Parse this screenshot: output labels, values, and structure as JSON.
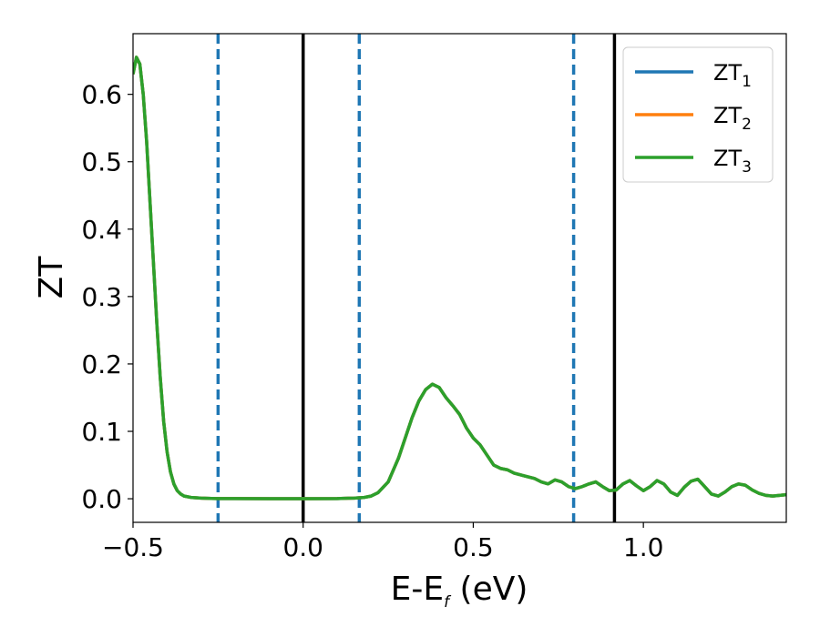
{
  "chart_data": {
    "type": "line",
    "title": "",
    "xlabel_main": "E-E",
    "xlabel_sub": "f",
    "xlabel_unit": " (eV)",
    "ylabel": "ZT",
    "xlim": [
      -0.5,
      1.42
    ],
    "ylim": [
      -0.035,
      0.69
    ],
    "xticks": [
      {
        "value": -0.5,
        "label": "−0.5"
      },
      {
        "value": 0.0,
        "label": "0.0"
      },
      {
        "value": 0.5,
        "label": "0.5"
      },
      {
        "value": 1.0,
        "label": "1.0"
      }
    ],
    "yticks": [
      {
        "value": 0.0,
        "label": "0.0"
      },
      {
        "value": 0.1,
        "label": "0.1"
      },
      {
        "value": 0.2,
        "label": "0.2"
      },
      {
        "value": 0.3,
        "label": "0.3"
      },
      {
        "value": 0.4,
        "label": "0.4"
      },
      {
        "value": 0.5,
        "label": "0.5"
      },
      {
        "value": 0.6,
        "label": "0.6"
      }
    ],
    "grid": false,
    "legend_position": "top-right",
    "vlines_solid": [
      0.0,
      0.915
    ],
    "vlines_dashed": [
      -0.25,
      0.165,
      0.795
    ],
    "vline_solid_color": "#000000",
    "vline_dashed_color": "#1f77b4",
    "x": [
      -0.5,
      -0.49,
      -0.48,
      -0.47,
      -0.46,
      -0.45,
      -0.44,
      -0.43,
      -0.42,
      -0.41,
      -0.4,
      -0.39,
      -0.38,
      -0.37,
      -0.36,
      -0.35,
      -0.33,
      -0.3,
      -0.27,
      -0.25,
      -0.2,
      -0.1,
      0.0,
      0.1,
      0.15,
      0.18,
      0.2,
      0.22,
      0.25,
      0.28,
      0.3,
      0.32,
      0.34,
      0.36,
      0.38,
      0.4,
      0.42,
      0.44,
      0.46,
      0.48,
      0.5,
      0.52,
      0.54,
      0.56,
      0.58,
      0.6,
      0.62,
      0.65,
      0.68,
      0.7,
      0.72,
      0.74,
      0.76,
      0.78,
      0.8,
      0.82,
      0.84,
      0.86,
      0.88,
      0.9,
      0.92,
      0.94,
      0.96,
      0.98,
      1.0,
      1.02,
      1.04,
      1.06,
      1.08,
      1.1,
      1.12,
      1.14,
      1.16,
      1.18,
      1.2,
      1.22,
      1.24,
      1.26,
      1.28,
      1.3,
      1.32,
      1.34,
      1.36,
      1.38,
      1.4,
      1.42
    ],
    "series": [
      {
        "name": "ZT",
        "sub": "1",
        "color": "#1f77b4",
        "values": [
          0.63,
          0.655,
          0.645,
          0.6,
          0.53,
          0.44,
          0.35,
          0.26,
          0.18,
          0.115,
          0.07,
          0.04,
          0.022,
          0.012,
          0.007,
          0.004,
          0.002,
          0.001,
          0.0005,
          0.0003,
          0.0002,
          0.0001,
          0.0001,
          0.0003,
          0.001,
          0.002,
          0.004,
          0.009,
          0.025,
          0.06,
          0.09,
          0.12,
          0.145,
          0.162,
          0.17,
          0.165,
          0.15,
          0.138,
          0.125,
          0.105,
          0.09,
          0.08,
          0.065,
          0.05,
          0.045,
          0.043,
          0.038,
          0.034,
          0.03,
          0.025,
          0.022,
          0.028,
          0.025,
          0.018,
          0.015,
          0.018,
          0.022,
          0.025,
          0.018,
          0.012,
          0.013,
          0.022,
          0.027,
          0.019,
          0.012,
          0.018,
          0.027,
          0.022,
          0.01,
          0.005,
          0.017,
          0.026,
          0.029,
          0.018,
          0.007,
          0.004,
          0.01,
          0.018,
          0.022,
          0.02,
          0.013,
          0.008,
          0.005,
          0.004,
          0.005,
          0.006
        ]
      },
      {
        "name": "ZT",
        "sub": "2",
        "color": "#ff7f0e",
        "values": [
          0.63,
          0.655,
          0.645,
          0.6,
          0.53,
          0.44,
          0.35,
          0.26,
          0.18,
          0.115,
          0.07,
          0.04,
          0.022,
          0.012,
          0.007,
          0.004,
          0.002,
          0.001,
          0.0005,
          0.0003,
          0.0002,
          0.0001,
          0.0001,
          0.0003,
          0.001,
          0.002,
          0.004,
          0.009,
          0.025,
          0.06,
          0.09,
          0.12,
          0.145,
          0.162,
          0.17,
          0.165,
          0.15,
          0.138,
          0.125,
          0.105,
          0.09,
          0.08,
          0.065,
          0.05,
          0.045,
          0.043,
          0.038,
          0.034,
          0.03,
          0.025,
          0.022,
          0.028,
          0.025,
          0.018,
          0.015,
          0.018,
          0.022,
          0.025,
          0.018,
          0.012,
          0.013,
          0.022,
          0.027,
          0.019,
          0.012,
          0.018,
          0.027,
          0.022,
          0.01,
          0.005,
          0.017,
          0.026,
          0.029,
          0.018,
          0.007,
          0.004,
          0.01,
          0.018,
          0.022,
          0.02,
          0.013,
          0.008,
          0.005,
          0.004,
          0.005,
          0.006
        ]
      },
      {
        "name": "ZT",
        "sub": "3",
        "color": "#2ca02c",
        "values": [
          0.63,
          0.655,
          0.645,
          0.6,
          0.53,
          0.44,
          0.35,
          0.26,
          0.18,
          0.115,
          0.07,
          0.04,
          0.022,
          0.012,
          0.007,
          0.004,
          0.002,
          0.001,
          0.0005,
          0.0003,
          0.0002,
          0.0001,
          0.0001,
          0.0003,
          0.001,
          0.002,
          0.004,
          0.009,
          0.025,
          0.06,
          0.09,
          0.12,
          0.145,
          0.162,
          0.17,
          0.165,
          0.15,
          0.138,
          0.125,
          0.105,
          0.09,
          0.08,
          0.065,
          0.05,
          0.045,
          0.043,
          0.038,
          0.034,
          0.03,
          0.025,
          0.022,
          0.028,
          0.025,
          0.018,
          0.015,
          0.018,
          0.022,
          0.025,
          0.018,
          0.012,
          0.013,
          0.022,
          0.027,
          0.019,
          0.012,
          0.018,
          0.027,
          0.022,
          0.01,
          0.005,
          0.017,
          0.026,
          0.029,
          0.018,
          0.007,
          0.004,
          0.01,
          0.018,
          0.022,
          0.02,
          0.013,
          0.008,
          0.005,
          0.004,
          0.005,
          0.006
        ]
      }
    ]
  }
}
